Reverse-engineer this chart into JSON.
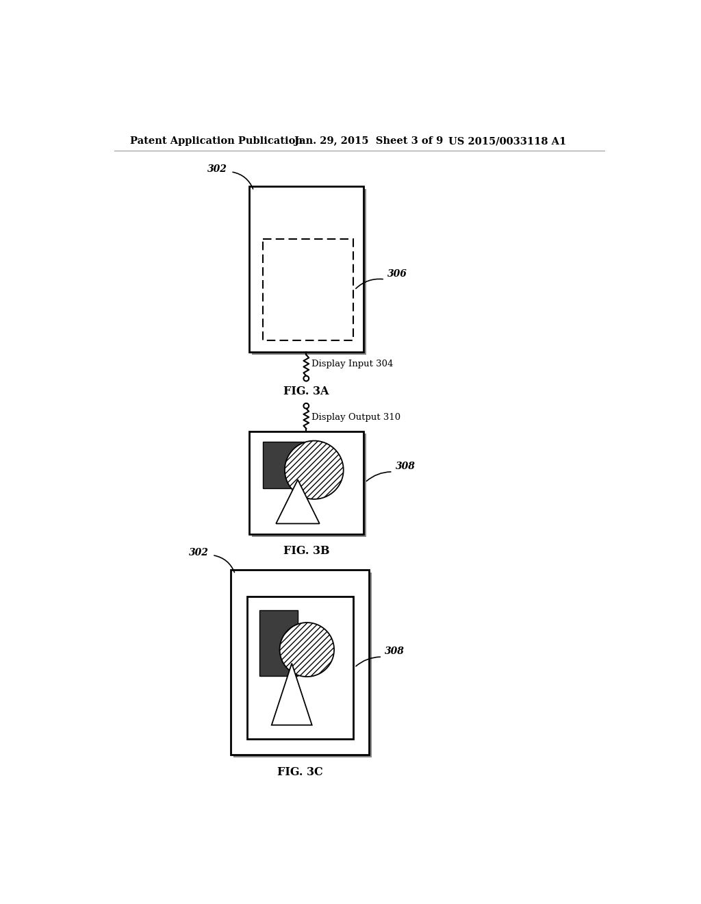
{
  "bg_color": "#ffffff",
  "header_left": "Patent Application Publication",
  "header_mid": "Jan. 29, 2015  Sheet 3 of 9",
  "header_right": "US 2015/0033118 A1",
  "fig_labels": [
    "FIG. 3A",
    "FIG. 3B",
    "FIG. 3C"
  ],
  "ref_302_label": "302",
  "ref_304_label": "Display Input 304",
  "ref_306_label": "306",
  "ref_308_label": "308",
  "ref_310_label": "Display Output 310",
  "dark_sq_color": "#3d3d3d",
  "shadow_color": "#777777"
}
